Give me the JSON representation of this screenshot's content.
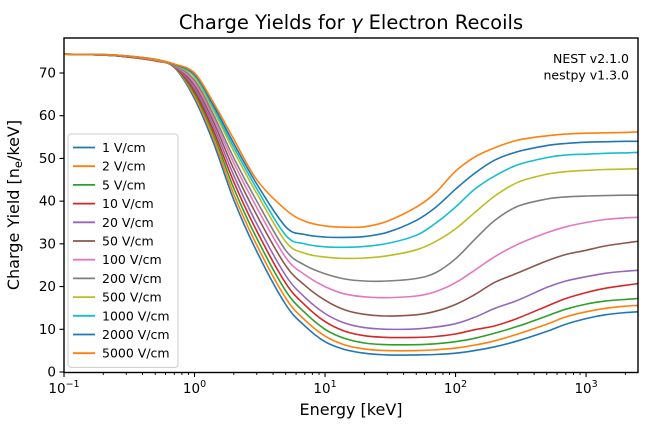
{
  "chart_data": {
    "type": "line",
    "title": "Charge Yields for γ Electron Recoils",
    "title_pre": "Charge Yields for ",
    "title_gamma": "γ",
    "title_post": " Electron Recoils",
    "xlabel": "Energy [keV]",
    "ylabel": "Charge Yield [nₑ/keV]",
    "ylabel_pre": "Charge Yield [n",
    "ylabel_sub": "e",
    "ylabel_post": "/keV]",
    "x_scale": "log",
    "xlim": [
      0.1,
      2500
    ],
    "ylim": [
      0,
      78.2
    ],
    "grid": false,
    "legend_position": "center left",
    "annotation_lines": [
      "NEST v2.1.0",
      "nestpy v1.3.0"
    ],
    "x_tick_base": "10",
    "x_tick_exponents": [
      "−1",
      "0",
      "1",
      "2",
      "3"
    ],
    "x_tick_decades": [
      -1,
      0,
      1,
      2,
      3
    ],
    "y_ticks": [
      0,
      10,
      20,
      30,
      40,
      50,
      60,
      70
    ],
    "x": [
      0.1,
      0.2,
      0.3,
      0.5,
      0.7,
      1,
      1.4,
      2,
      3,
      5,
      7,
      10,
      14,
      20,
      30,
      50,
      70,
      100,
      140,
      200,
      300,
      500,
      700,
      1000,
      1400,
      2000,
      2500
    ],
    "series": [
      {
        "name": "1 V/cm",
        "color": "#1f77b4",
        "values": [
          74.4,
          74.2,
          73.8,
          72.8,
          71.3,
          64.0,
          53.6,
          40.3,
          28.2,
          15.8,
          10.8,
          7.1,
          5.3,
          4.4,
          4.0,
          4.0,
          4.1,
          4.4,
          5.0,
          5.9,
          7.3,
          9.5,
          11.2,
          12.5,
          13.4,
          13.9,
          14.1
        ]
      },
      {
        "name": "2 V/cm",
        "color": "#ff7f0e",
        "values": [
          74.4,
          74.2,
          73.8,
          72.8,
          71.4,
          64.6,
          54.6,
          41.6,
          29.7,
          17.3,
          12.2,
          8.4,
          6.4,
          5.4,
          5.0,
          5.0,
          5.2,
          5.6,
          6.3,
          7.3,
          8.9,
          11.2,
          12.9,
          14.1,
          14.9,
          15.4,
          15.6
        ]
      },
      {
        "name": "5 V/cm",
        "color": "#2ca02c",
        "values": [
          74.4,
          74.2,
          73.8,
          72.9,
          71.5,
          65.2,
          55.6,
          43.0,
          31.3,
          19.0,
          13.9,
          10.0,
          7.9,
          6.8,
          6.4,
          6.4,
          6.6,
          7.1,
          7.9,
          9.1,
          10.7,
          13.1,
          14.7,
          15.9,
          16.6,
          17.0,
          17.2
        ]
      },
      {
        "name": "10 V/cm",
        "color": "#d62728",
        "values": [
          74.4,
          74.2,
          73.8,
          72.9,
          71.5,
          65.8,
          56.5,
          44.5,
          33.0,
          20.8,
          15.7,
          11.8,
          9.6,
          8.5,
          8.1,
          8.1,
          8.3,
          8.9,
          9.9,
          10.8,
          12.6,
          15.4,
          17.2,
          18.6,
          19.6,
          20.3,
          20.7
        ]
      },
      {
        "name": "20 V/cm",
        "color": "#9467bd",
        "values": [
          74.4,
          74.2,
          73.9,
          73.0,
          71.6,
          66.4,
          57.5,
          46.0,
          34.7,
          22.6,
          17.5,
          13.7,
          11.5,
          10.4,
          10.0,
          10.1,
          10.5,
          11.3,
          12.8,
          14.9,
          16.8,
          19.8,
          21.3,
          22.3,
          23.1,
          23.6,
          23.8
        ]
      },
      {
        "name": "50 V/cm",
        "color": "#8c564b",
        "values": [
          74.4,
          74.2,
          73.9,
          73.0,
          71.7,
          67.1,
          58.5,
          47.5,
          36.7,
          24.9,
          20.3,
          16.8,
          14.6,
          13.5,
          13.1,
          13.4,
          14.2,
          15.8,
          18.1,
          21.0,
          23.2,
          26.0,
          27.5,
          28.5,
          29.5,
          30.2,
          30.6
        ]
      },
      {
        "name": "100 V/cm",
        "color": "#e377c2",
        "values": [
          74.4,
          74.2,
          73.9,
          73.0,
          71.7,
          67.7,
          59.4,
          48.9,
          38.5,
          26.8,
          22.8,
          20.0,
          18.3,
          17.6,
          17.4,
          17.8,
          18.8,
          20.9,
          23.8,
          27.0,
          29.9,
          32.6,
          34.0,
          35.0,
          35.7,
          36.1,
          36.2
        ]
      },
      {
        "name": "200 V/cm",
        "color": "#7f7f7f",
        "values": [
          74.4,
          74.2,
          73.9,
          73.1,
          71.8,
          68.3,
          60.2,
          50.1,
          40.0,
          28.5,
          25.0,
          23.0,
          21.8,
          21.3,
          21.3,
          21.9,
          23.2,
          26.5,
          31.0,
          35.5,
          38.8,
          40.5,
          41.0,
          41.2,
          41.3,
          41.4,
          41.4
        ]
      },
      {
        "name": "500 V/cm",
        "color": "#bcbd22",
        "values": [
          74.4,
          74.3,
          74.0,
          73.1,
          71.9,
          69.0,
          61.2,
          51.7,
          41.8,
          30.5,
          27.8,
          26.9,
          26.6,
          26.7,
          27.2,
          28.6,
          30.5,
          33.5,
          37.3,
          41.2,
          44.4,
          46.3,
          46.9,
          47.2,
          47.4,
          47.5,
          47.6
        ]
      },
      {
        "name": "1000 V/cm",
        "color": "#17becf",
        "values": [
          74.4,
          74.3,
          74.0,
          73.2,
          72.0,
          69.4,
          61.8,
          52.6,
          42.9,
          32.0,
          30.0,
          29.3,
          29.2,
          29.4,
          30.1,
          32.0,
          34.8,
          38.6,
          42.8,
          45.9,
          48.5,
          50.2,
          50.8,
          51.0,
          51.2,
          51.3,
          51.4
        ]
      },
      {
        "name": "2000 V/cm",
        "color": "#1f77b4",
        "values": [
          74.4,
          74.3,
          74.0,
          73.2,
          72.0,
          69.7,
          62.4,
          53.5,
          44.0,
          34.0,
          32.2,
          31.6,
          31.5,
          31.7,
          32.7,
          35.5,
          38.5,
          42.8,
          46.5,
          49.6,
          51.6,
          53.0,
          53.5,
          53.8,
          53.9,
          54.0,
          54.0
        ]
      },
      {
        "name": "5000 V/cm",
        "color": "#ff7f0e",
        "values": [
          74.4,
          74.3,
          74.0,
          73.2,
          72.1,
          70.0,
          63.0,
          54.5,
          45.0,
          38.0,
          35.3,
          34.2,
          33.9,
          34.0,
          35.3,
          38.6,
          41.9,
          47.0,
          50.3,
          52.5,
          54.3,
          55.3,
          55.7,
          55.9,
          56.0,
          56.1,
          56.2
        ]
      }
    ]
  }
}
